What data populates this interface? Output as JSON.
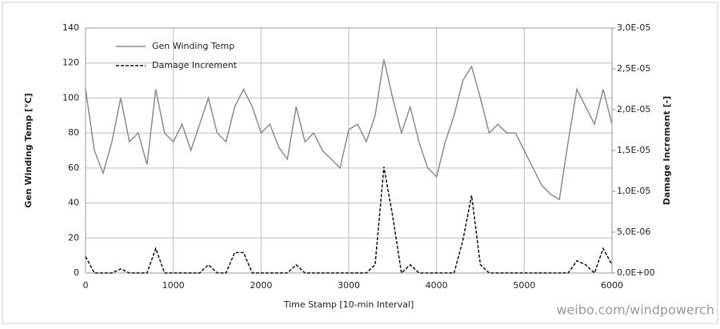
{
  "chart_data": {
    "type": "line",
    "x_label": "Time Stamp [10-min Interval]",
    "y_label": "Gen Winding Temp [°C]",
    "y2_label": "Damage Increment [-]",
    "x": [
      0,
      100,
      200,
      300,
      400,
      500,
      600,
      700,
      800,
      900,
      1000,
      1100,
      1200,
      1300,
      1400,
      1500,
      1600,
      1700,
      1800,
      1900,
      2000,
      2100,
      2200,
      2300,
      2400,
      2500,
      2600,
      2700,
      2800,
      2900,
      3000,
      3100,
      3200,
      3300,
      3400,
      3500,
      3600,
      3700,
      3800,
      3900,
      4000,
      4100,
      4200,
      4300,
      4400,
      4500,
      4600,
      4700,
      4800,
      4900,
      5000,
      5100,
      5200,
      5300,
      5400,
      5500,
      5600,
      5700,
      5800,
      5900,
      6000
    ],
    "series": [
      {
        "name": "Gen Winding Temp",
        "color": "#8c8c8c",
        "dash": false,
        "axis": "y",
        "values": [
          105,
          70,
          57,
          75,
          100,
          75,
          80,
          62,
          105,
          80,
          75,
          85,
          70,
          85,
          100,
          80,
          75,
          95,
          105,
          95,
          80,
          85,
          72,
          65,
          95,
          75,
          80,
          70,
          65,
          60,
          82,
          85,
          75,
          90,
          122,
          100,
          80,
          95,
          75,
          60,
          55,
          75,
          90,
          110,
          118,
          100,
          80,
          85,
          80,
          80,
          70,
          60,
          50,
          45,
          42,
          75,
          105,
          95,
          85,
          105,
          85
        ]
      },
      {
        "name": "Damage Increment",
        "color": "#111111",
        "dash": true,
        "axis": "y2",
        "values": [
          2e-06,
          0,
          0,
          0,
          5e-07,
          0,
          0,
          0,
          3e-06,
          0,
          0,
          0,
          0,
          0,
          1e-06,
          0,
          0,
          2.5e-06,
          2.5e-06,
          0,
          0,
          0,
          0,
          0,
          1e-06,
          0,
          0,
          0,
          0,
          0,
          0,
          0,
          0,
          1e-06,
          1.3e-05,
          7e-06,
          0,
          1e-06,
          0,
          0,
          0,
          0,
          0,
          4e-06,
          9.5e-06,
          1e-06,
          0,
          0,
          0,
          0,
          0,
          0,
          0,
          0,
          0,
          0,
          1.5e-06,
          1e-06,
          0,
          3e-06,
          1e-06
        ]
      }
    ],
    "xlim": [
      0,
      6000
    ],
    "xticks": [
      0,
      1000,
      2000,
      3000,
      4000,
      5000,
      6000
    ],
    "ylim": [
      0,
      140
    ],
    "yticks": [
      0,
      20,
      40,
      60,
      80,
      100,
      120,
      140
    ],
    "y2lim": [
      0,
      3e-05
    ],
    "y2ticks": [
      {
        "value": 0,
        "label": "0,0E+00"
      },
      {
        "value": 5e-06,
        "label": "5,0E-06"
      },
      {
        "value": 1e-05,
        "label": "1,0E-05"
      },
      {
        "value": 1.5e-05,
        "label": "1,5E-05"
      },
      {
        "value": 2e-05,
        "label": "2,0E-05"
      },
      {
        "value": 2.5e-05,
        "label": "2,5E-05"
      },
      {
        "value": 3e-05,
        "label": "3,0E-05"
      }
    ],
    "grid": true,
    "legend": "top-left",
    "watermark": "weibo.com/windpowerch"
  }
}
